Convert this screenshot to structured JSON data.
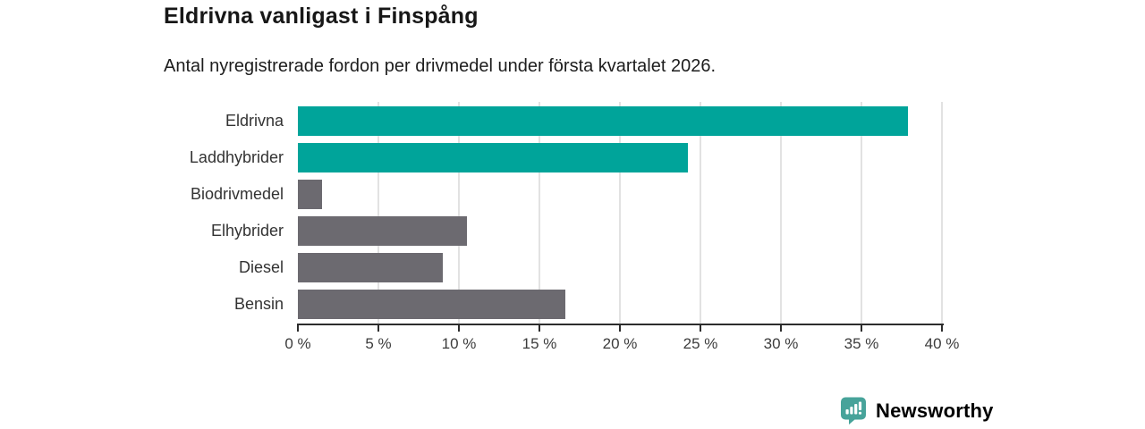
{
  "header": {
    "title": "Eldrivna vanligast i Finspång",
    "subtitle": "Antal nyregistrerade fordon per drivmedel under första kvartalet 2026."
  },
  "chart_data": {
    "type": "bar",
    "orientation": "horizontal",
    "title": "Eldrivna vanligast i Finspång",
    "subtitle": "Antal nyregistrerade fordon per drivmedel under första kvartalet 2026.",
    "categories": [
      "Eldrivna",
      "Laddhybrider",
      "Biodrivmedel",
      "Elhybrider",
      "Diesel",
      "Bensin"
    ],
    "values": [
      37.9,
      24.2,
      1.5,
      10.5,
      9.0,
      16.6
    ],
    "unit": "%",
    "bar_colors": [
      "#00a49a",
      "#00a49a",
      "#6c6a70",
      "#6c6a70",
      "#6c6a70",
      "#6c6a70"
    ],
    "xlim": [
      0,
      40
    ],
    "xticks": [
      0,
      5,
      10,
      15,
      20,
      25,
      30,
      35,
      40
    ],
    "xtick_labels": [
      "0 %",
      "5 %",
      "10 %",
      "15 %",
      "20 %",
      "25 %",
      "30 %",
      "35 %",
      "40 %"
    ],
    "xlabel": "",
    "ylabel": "",
    "grid": true,
    "grid_color": "#e2e2e2",
    "axis_color": "#2d2d2d",
    "legend": "none"
  },
  "branding": {
    "logo_text": "Newsworthy",
    "logo_text_color": "#3a918a",
    "logo_icon_color": "#47a39a",
    "logo_icon": "bar-chart-speech-bubble"
  }
}
